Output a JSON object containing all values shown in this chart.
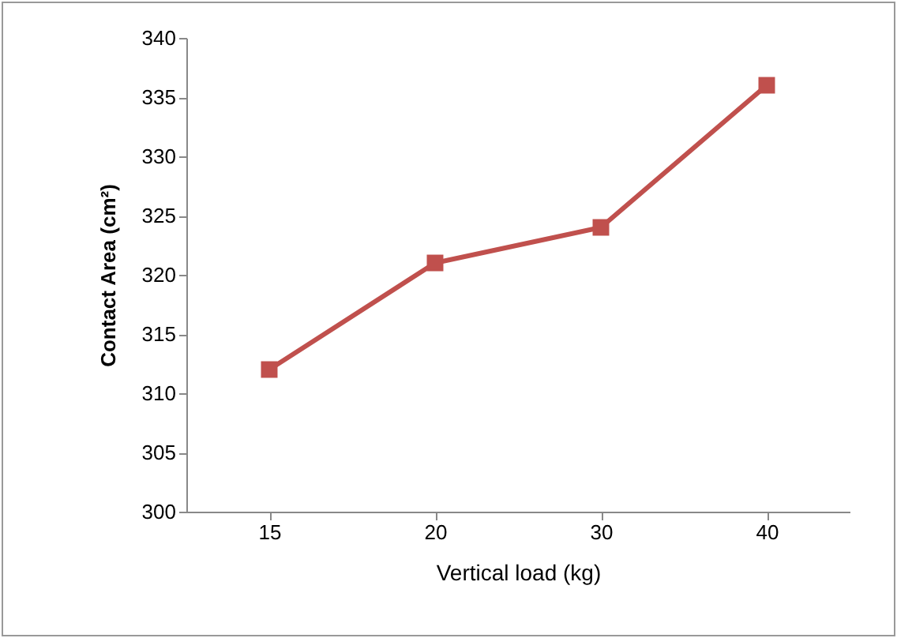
{
  "chart_data": {
    "type": "line",
    "xlabel": "Vertical load (kg)",
    "ylabel": "Contact Area (cm²)",
    "categories": [
      "15",
      "20",
      "30",
      "40"
    ],
    "series": [
      {
        "color": "#c0504d",
        "values": [
          312,
          321,
          324,
          336
        ]
      }
    ],
    "ylim": [
      300,
      340
    ],
    "yticks": [
      300,
      305,
      310,
      315,
      320,
      325,
      330,
      335,
      340
    ],
    "grid": false,
    "legend": false,
    "marker": "square",
    "line_style": "solid"
  }
}
